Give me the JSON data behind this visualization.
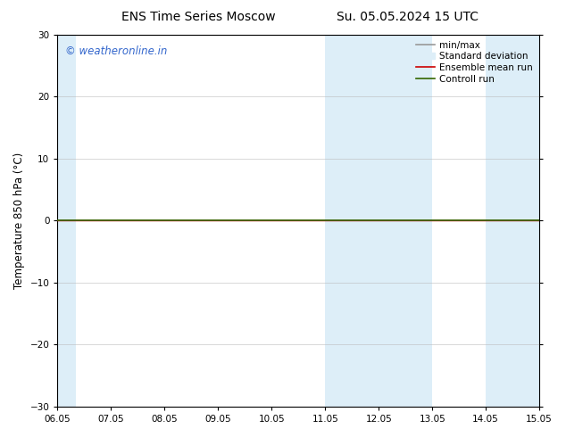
{
  "title_left": "ENS Time Series Moscow",
  "title_right": "Su. 05.05.2024 15 UTC",
  "ylabel": "Temperature 850 hPa (°C)",
  "watermark": "© weatheronline.in",
  "xlim_start": 0,
  "xlim_end": 9,
  "ylim": [
    -30,
    30
  ],
  "yticks": [
    -30,
    -20,
    -10,
    0,
    10,
    20,
    30
  ],
  "xtick_labels": [
    "06.05",
    "07.05",
    "08.05",
    "09.05",
    "10.05",
    "11.05",
    "12.05",
    "13.05",
    "14.05",
    "15.05"
  ],
  "xtick_positions": [
    0,
    1,
    2,
    3,
    4,
    5,
    6,
    7,
    8,
    9
  ],
  "background_color": "#ffffff",
  "plot_bg_color": "#ffffff",
  "shaded_color": "#ddeef8",
  "shaded_regions": [
    {
      "xstart": 0.0,
      "xend": 0.35
    },
    {
      "xstart": 5.0,
      "xend": 7.0
    },
    {
      "xstart": 8.0,
      "xend": 9.0
    }
  ],
  "green_line_y": 0.0,
  "green_line_color": "#336600",
  "green_line_lw": 1.2,
  "red_line_y": 0.0,
  "red_line_color": "#cc0000",
  "red_line_lw": 1.0,
  "legend_entries": [
    {
      "label": "min/max",
      "type": "line",
      "color": "#999999",
      "lw": 1.2
    },
    {
      "label": "Standard deviation",
      "type": "patch",
      "color": "#ddeef8"
    },
    {
      "label": "Ensemble mean run",
      "type": "line",
      "color": "#cc0000",
      "lw": 1.2
    },
    {
      "label": "Controll run",
      "type": "line",
      "color": "#336600",
      "lw": 1.2
    }
  ],
  "watermark_color": "#3366cc",
  "title_fontsize": 10,
  "tick_fontsize": 7.5,
  "ylabel_fontsize": 8.5,
  "legend_fontsize": 7.5,
  "grid_color": "#bbbbbb",
  "grid_lw": 0.4,
  "border_color": "#000000",
  "border_lw": 0.8
}
